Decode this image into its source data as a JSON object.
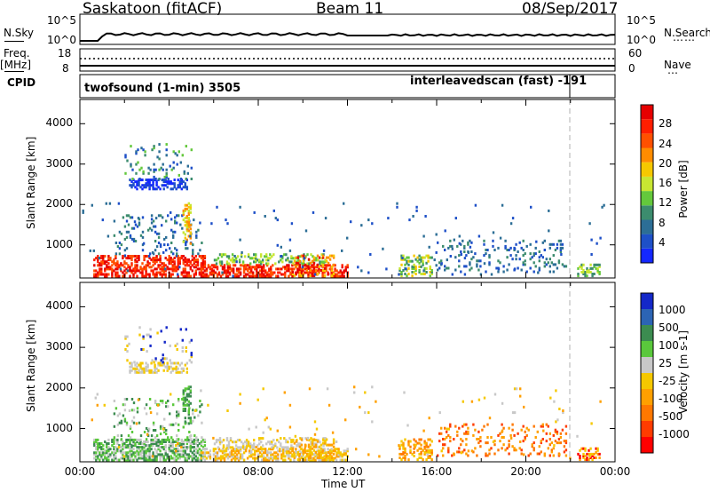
{
  "header": {
    "station": "Saskatoon (fitACF)",
    "beam": "Beam 11",
    "date": "08/Sep/2017"
  },
  "top_panels": {
    "nsky_label": "N.Sky",
    "nsky_ticks": [
      "10^5",
      "10^0"
    ],
    "nsearch_label": "N.Search",
    "nsearch_ticks": [
      "10^5",
      "10^0"
    ],
    "freq_label": "Freq.",
    "freq_unit": "[MHz]",
    "freq_ticks": [
      "18",
      "8"
    ],
    "nave_label": "Nave",
    "nave_ticks": [
      "60",
      "0"
    ],
    "cpid_label": "CPID",
    "cpid_segments": [
      "twofsound (1-min) 3505",
      "interleavedscan (fast) -191"
    ]
  },
  "colors": {
    "grid_line": "#000000",
    "dashed_marker": "#b0b0b0"
  },
  "chart_data": [
    {
      "type": "heatmap",
      "panel": "power",
      "ylabel": "Slant Range [km]",
      "yticks": [
        "1000",
        "2000",
        "3000",
        "4000"
      ],
      "ylim": [
        180,
        4600
      ],
      "xlim": [
        0,
        24
      ],
      "colorbar_label": "Power [dB]",
      "colorbar_ticks": [
        "4",
        "8",
        "12",
        "16",
        "20",
        "24",
        "28"
      ],
      "colorbar_colors": [
        "#1428ff",
        "#1e50c8",
        "#2c6e96",
        "#3c8c6e",
        "#64c83c",
        "#c8e632",
        "#f5c800",
        "#ff8c00",
        "#ff5000",
        "#ff1e00",
        "#e60000"
      ],
      "cpid_change_hour": 21.9
    },
    {
      "type": "heatmap",
      "panel": "velocity",
      "ylabel": "Slant Range [km]",
      "yticks": [
        "1000",
        "2000",
        "3000",
        "4000"
      ],
      "ylim": [
        180,
        4600
      ],
      "xlim": [
        0,
        24
      ],
      "colorbar_label": "Velocity [m s-1]",
      "colorbar_ticks": [
        "1000",
        "500",
        "100",
        "25",
        "-25",
        "-100",
        "-500",
        "-1000"
      ],
      "colorbar_colors": [
        "#1428c8",
        "#2c64b4",
        "#3c8c50",
        "#5ac83c",
        "#c8c8c8",
        "#f5c800",
        "#ffa000",
        "#ff7800",
        "#ff3c00",
        "#ff0000"
      ],
      "cpid_change_hour": 21.9
    }
  ],
  "xaxis": {
    "label": "Time UT",
    "ticks": [
      "00:00",
      "04:00",
      "08:00",
      "12:00",
      "16:00",
      "20:00",
      "00:00"
    ]
  }
}
